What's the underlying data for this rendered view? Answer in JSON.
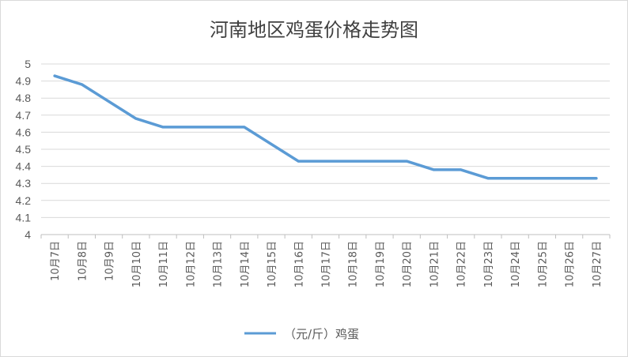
{
  "chart_data": {
    "type": "line",
    "title": "河南地区鸡蛋价格走势图",
    "xlabel": "",
    "ylabel": "",
    "ylim": [
      4,
      5
    ],
    "yticks": [
      "4",
      "4.1",
      "4.2",
      "4.3",
      "4.4",
      "4.5",
      "4.6",
      "4.7",
      "4.8",
      "4.9",
      "5"
    ],
    "grid": true,
    "legend_position": "bottom",
    "categories": [
      "10月7日",
      "10月8日",
      "10月9日",
      "10月10日",
      "10月11日",
      "10月12日",
      "10月13日",
      "10月14日",
      "10月15日",
      "10月16日",
      "10月17日",
      "10月18日",
      "10月19日",
      "10月20日",
      "10月21日",
      "10月22日",
      "10月23日",
      "10月24日",
      "10月25日",
      "10月26日",
      "10月27日"
    ],
    "series": [
      {
        "name": "（元/斤）鸡蛋",
        "color": "#5b9bd5",
        "values": [
          4.93,
          4.88,
          4.78,
          4.68,
          4.63,
          4.63,
          4.63,
          4.63,
          4.53,
          4.43,
          4.43,
          4.43,
          4.43,
          4.43,
          4.38,
          4.38,
          4.33,
          4.33,
          4.33,
          4.33,
          4.33
        ]
      }
    ],
    "gridline_color": "#d9d9d9",
    "axis_color": "#bfbfbf"
  }
}
